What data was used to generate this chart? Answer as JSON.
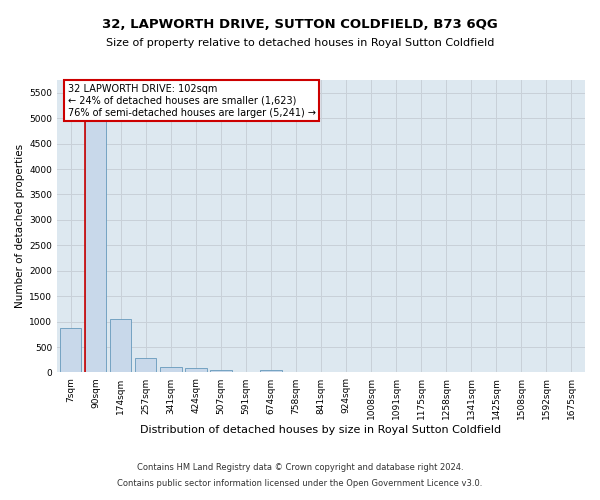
{
  "title": "32, LAPWORTH DRIVE, SUTTON COLDFIELD, B73 6QG",
  "subtitle": "Size of property relative to detached houses in Royal Sutton Coldfield",
  "xlabel": "Distribution of detached houses by size in Royal Sutton Coldfield",
  "ylabel": "Number of detached properties",
  "footer_line1": "Contains HM Land Registry data © Crown copyright and database right 2024.",
  "footer_line2": "Contains public sector information licensed under the Open Government Licence v3.0.",
  "annotation_title": "32 LAPWORTH DRIVE: 102sqm",
  "annotation_line2": "← 24% of detached houses are smaller (1,623)",
  "annotation_line3": "76% of semi-detached houses are larger (5,241) →",
  "bar_labels": [
    "7sqm",
    "90sqm",
    "174sqm",
    "257sqm",
    "341sqm",
    "424sqm",
    "507sqm",
    "591sqm",
    "674sqm",
    "758sqm",
    "841sqm",
    "924sqm",
    "1008sqm",
    "1091sqm",
    "1175sqm",
    "1258sqm",
    "1341sqm",
    "1425sqm",
    "1508sqm",
    "1592sqm",
    "1675sqm"
  ],
  "bar_values": [
    870,
    5510,
    1060,
    290,
    100,
    80,
    55,
    0,
    55,
    0,
    0,
    0,
    0,
    0,
    0,
    0,
    0,
    0,
    0,
    0,
    0
  ],
  "bar_color": "#c8d8ea",
  "bar_edge_color": "#6699bb",
  "red_line_color": "#cc0000",
  "annotation_box_color": "#ffffff",
  "annotation_box_edge": "#cc0000",
  "grid_color": "#c8d0d8",
  "ax_bg_color": "#dde8f0",
  "background_color": "#ffffff",
  "ylim": [
    0,
    5750
  ],
  "yticks": [
    0,
    500,
    1000,
    1500,
    2000,
    2500,
    3000,
    3500,
    4000,
    4500,
    5000,
    5500
  ],
  "title_fontsize": 9.5,
  "subtitle_fontsize": 8,
  "ylabel_fontsize": 7.5,
  "xlabel_fontsize": 8,
  "tick_fontsize": 6.5,
  "footer_fontsize": 6,
  "ann_fontsize": 7
}
